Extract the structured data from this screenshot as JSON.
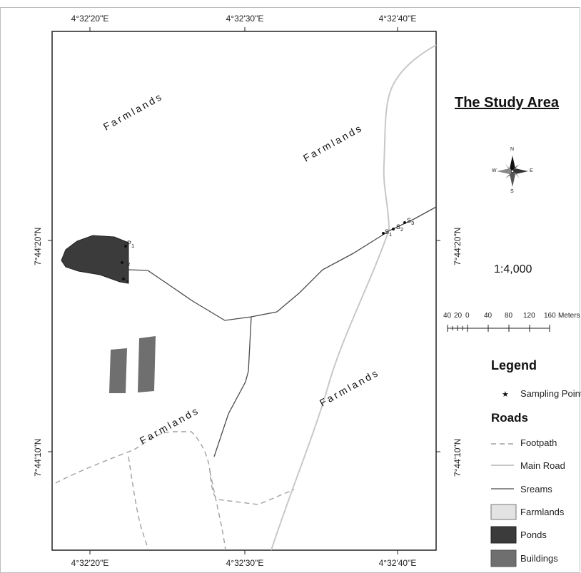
{
  "map": {
    "title": "The Study Area",
    "scale": "1:4,000",
    "coords": {
      "top": [
        "4°32'20\"E",
        "4°32'30\"E",
        "4°32'40\"E"
      ],
      "bottom": [
        "4°32'20\"E",
        "4°32'30\"E",
        "4°32'40\"E"
      ],
      "left": [
        "7°44'20\"N",
        "7°44'10\"N"
      ],
      "right": [
        "7°44'20\"N",
        "7°44'10\"N"
      ]
    },
    "farmland_labels": [
      "Farmlands",
      "Farmlands",
      "Farmlands",
      "Farmlands"
    ],
    "sampling_labels": {
      "p1": "P",
      "p1_sub": "1",
      "p2_sub": "2",
      "p3_sub": "3",
      "s1": "S",
      "s1_sub": "1",
      "s2": "S",
      "s2_sub": "2",
      "s3": "S",
      "s3_sub": "3"
    },
    "compass": {
      "n": "N",
      "s": "S",
      "e": "E",
      "w": "W"
    },
    "scalebar": {
      "ticks": [
        "40",
        "20",
        "0",
        "40",
        "80",
        "120",
        "160"
      ],
      "unit": "Meters"
    },
    "legend": {
      "title": "Legend",
      "sampling": "Sampling Point",
      "roads_title": "Roads",
      "items": [
        "Footpath",
        "Main Road",
        "Sreams",
        "Farmlands",
        "Ponds",
        "Buildings"
      ]
    },
    "colors": {
      "stream": "#4a4a4a",
      "main_road": "#c8c8c8",
      "footpath": "#9a9a9a",
      "pond": "#3b3b3b",
      "building": "#6f6f6f",
      "farmland_swatch": "#e3e3e3"
    }
  }
}
